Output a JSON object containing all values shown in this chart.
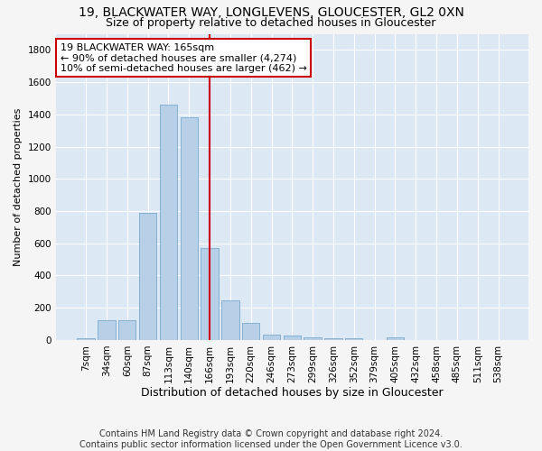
{
  "title": "19, BLACKWATER WAY, LONGLEVENS, GLOUCESTER, GL2 0XN",
  "subtitle": "Size of property relative to detached houses in Gloucester",
  "xlabel": "Distribution of detached houses by size in Gloucester",
  "ylabel": "Number of detached properties",
  "bar_labels": [
    "7sqm",
    "34sqm",
    "60sqm",
    "87sqm",
    "113sqm",
    "140sqm",
    "166sqm",
    "193sqm",
    "220sqm",
    "246sqm",
    "273sqm",
    "299sqm",
    "326sqm",
    "352sqm",
    "379sqm",
    "405sqm",
    "432sqm",
    "458sqm",
    "485sqm",
    "511sqm",
    "538sqm"
  ],
  "bar_heights": [
    10,
    125,
    125,
    790,
    1460,
    1380,
    570,
    245,
    105,
    35,
    25,
    15,
    10,
    10,
    0,
    15,
    0,
    0,
    0,
    0,
    0
  ],
  "bar_color": "#b8cfe8",
  "bar_edge_color": "#6a9fc8",
  "vline_x_index": 6,
  "vline_color": "#cc0000",
  "annotation_text": "19 BLACKWATER WAY: 165sqm\n← 90% of detached houses are smaller (4,274)\n10% of semi-detached houses are larger (462) →",
  "annotation_box_color": "#ffffff",
  "annotation_box_edge_color": "#cc0000",
  "ylim": [
    0,
    1900
  ],
  "yticks": [
    0,
    200,
    400,
    600,
    800,
    1000,
    1200,
    1400,
    1600,
    1800
  ],
  "footnote1": "Contains HM Land Registry data © Crown copyright and database right 2024.",
  "footnote2": "Contains public sector information licensed under the Open Government Licence v3.0.",
  "background_color": "#dde8f5",
  "fig_background_color": "#f5f5f5",
  "grid_color": "#ffffff",
  "title_fontsize": 10,
  "subtitle_fontsize": 9,
  "xlabel_fontsize": 9,
  "ylabel_fontsize": 8,
  "tick_fontsize": 7.5,
  "annotation_fontsize": 8,
  "footnote_fontsize": 7
}
